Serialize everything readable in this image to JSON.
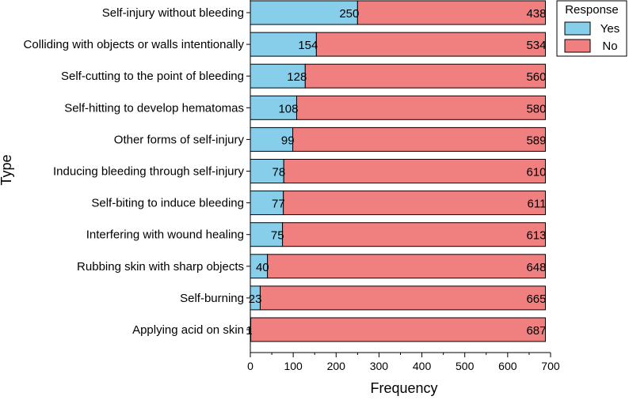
{
  "chart_data": {
    "type": "bar",
    "orientation": "horizontal",
    "stacked": true,
    "title": "",
    "xlabel": "Frequency",
    "ylabel": "Type",
    "xlim": [
      0,
      700
    ],
    "xticks": [
      0,
      100,
      200,
      300,
      400,
      500,
      600,
      700
    ],
    "grid": false,
    "legend_title": "Response",
    "legend_position": "top-right",
    "categories": [
      "Self-injury without bleeding",
      "Colliding with objects or walls intentionally",
      "Self-cutting to the point of bleeding",
      "Self-hitting to develop hematomas",
      "Other forms of self-injury",
      "Inducing bleeding through self-injury",
      "Self-biting to induce bleeding",
      "Interfering with wound healing",
      "Rubbing skin with sharp objects",
      "Self-burning",
      "Applying acid on skin"
    ],
    "series": [
      {
        "name": "Yes",
        "color": "#87CEEB",
        "values": [
          250,
          154,
          128,
          108,
          99,
          78,
          77,
          75,
          40,
          23,
          1
        ]
      },
      {
        "name": "No",
        "color": "#F08080",
        "values": [
          438,
          534,
          560,
          580,
          589,
          610,
          611,
          613,
          648,
          665,
          687
        ]
      }
    ]
  }
}
